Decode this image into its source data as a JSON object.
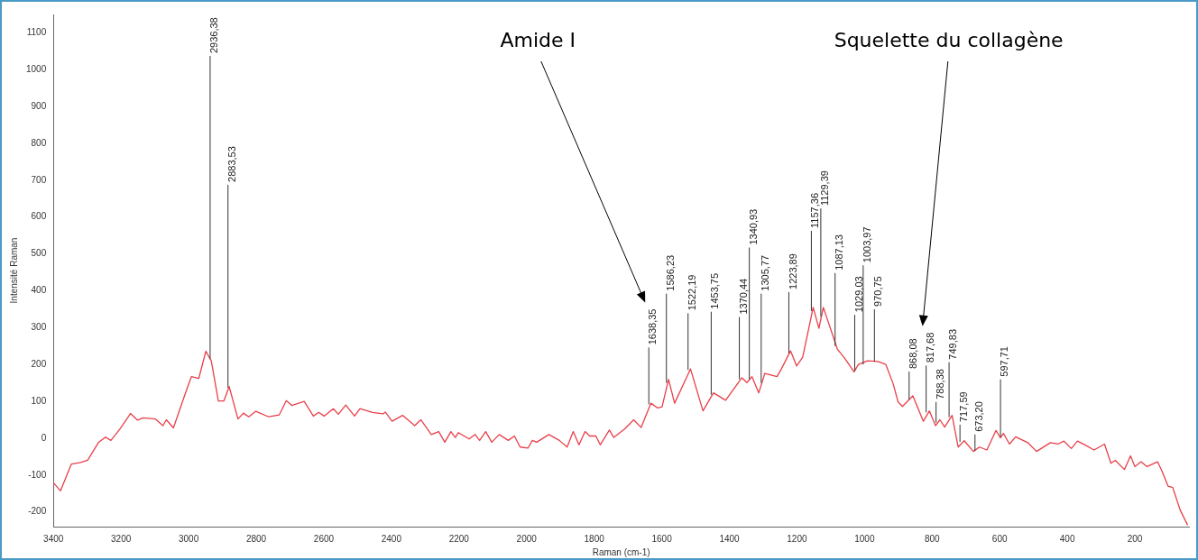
{
  "chart_data": {
    "type": "line",
    "xlabel": "Raman (cm-1)",
    "ylabel": "Intensité Raman",
    "xlim": [
      3400,
      40
    ],
    "ylim": [
      -240,
      1150
    ],
    "xticks": [
      3400,
      3200,
      3000,
      2800,
      2600,
      2400,
      2200,
      2000,
      1800,
      1600,
      1400,
      1200,
      1000,
      800,
      600,
      400,
      200
    ],
    "yticks": [
      -200,
      -100,
      0,
      100,
      200,
      300,
      400,
      500,
      600,
      700,
      800,
      900,
      1000,
      1100
    ],
    "grid": false,
    "legend": false,
    "marker": "none",
    "line_style": "solid",
    "series": [
      {
        "color": "#e8404a",
        "x": [
          3400,
          3379,
          3347,
          3320,
          3299,
          3267,
          3246,
          3230,
          3204,
          3172,
          3151,
          3135,
          3098,
          3076,
          3066,
          3045,
          3013,
          2992,
          2970,
          2949,
          2933,
          2912,
          2896,
          2880,
          2854,
          2838,
          2822,
          2801,
          2763,
          2732,
          2711,
          2695,
          2658,
          2631,
          2615,
          2599,
          2572,
          2557,
          2535,
          2509,
          2493,
          2456,
          2425,
          2418,
          2398,
          2367,
          2331,
          2313,
          2282,
          2260,
          2242,
          2224,
          2211,
          2202,
          2170,
          2152,
          2139,
          2121,
          2103,
          2081,
          2054,
          2036,
          2019,
          1996,
          1983,
          1970,
          1934,
          1903,
          1880,
          1862,
          1845,
          1827,
          1813,
          1795,
          1782,
          1755,
          1742,
          1710,
          1683,
          1661,
          1632,
          1612,
          1599,
          1580,
          1562,
          1515,
          1478,
          1447,
          1411,
          1363,
          1348,
          1333,
          1313,
          1295,
          1259,
          1246,
          1219,
          1201,
          1183,
          1152,
          1135,
          1122,
          1080,
          1058,
          1031,
          1018,
          991,
          960,
          937,
          915,
          901,
          888,
          857,
          826,
          808,
          790,
          777,
          763,
          741,
          723,
          705,
          678,
          660,
          638,
          611,
          598,
          589,
          571,
          553,
          517,
          491,
          450,
          428,
          410,
          388,
          370,
          344,
          321,
          290,
          271,
          258,
          231,
          213,
          200,
          182,
          164,
          133,
          120,
          102,
          88,
          66,
          44
        ],
        "values": [
          -121,
          -143,
          -70,
          -66,
          -60,
          -12,
          3,
          -6,
          24,
          67,
          49,
          55,
          52,
          34,
          50,
          28,
          113,
          167,
          162,
          236,
          210,
          101,
          101,
          140,
          52,
          68,
          58,
          73,
          58,
          63,
          102,
          89,
          100,
          60,
          70,
          60,
          80,
          65,
          90,
          60,
          80,
          70,
          66,
          71,
          46,
          62,
          34,
          50,
          10,
          18,
          -11,
          18,
          2,
          15,
          -2,
          10,
          -6,
          18,
          -11,
          10,
          -6,
          6,
          -24,
          -27,
          -6,
          -11,
          10,
          -6,
          -24,
          18,
          -18,
          18,
          6,
          6,
          -18,
          22,
          2,
          25,
          50,
          29,
          95,
          82,
          85,
          160,
          95,
          188,
          74,
          123,
          103,
          164,
          151,
          167,
          123,
          176,
          167,
          188,
          237,
          196,
          220,
          355,
          298,
          355,
          241,
          216,
          180,
          200,
          210,
          208,
          200,
          147,
          99,
          86,
          115,
          46,
          74,
          34,
          50,
          30,
          62,
          -24,
          -7,
          -36,
          -24,
          -32,
          21,
          1,
          13,
          -16,
          4,
          -12,
          -36,
          -12,
          -16,
          -8,
          -28,
          -8,
          -20,
          -32,
          -16,
          -68,
          -60,
          -85,
          -48,
          -77,
          -64,
          -77,
          -64,
          -89,
          -130,
          -134,
          -195,
          -236
        ]
      }
    ],
    "annotations": [
      "Amide I",
      "Squelette du collagène",
      {
        "text": "2936,38",
        "x": 2936.38,
        "y": 215
      },
      {
        "text": "2883,53",
        "x": 2883.53,
        "y": 137
      },
      {
        "text": "1638,35",
        "x": 1638.35,
        "y": 92
      },
      {
        "text": "1586,23",
        "x": 1586.23,
        "y": 150
      },
      {
        "text": "1522,19",
        "x": 1522.19,
        "y": 185
      },
      {
        "text": "1453,75",
        "x": 1453.75,
        "y": 118
      },
      {
        "text": "1370,44",
        "x": 1370.44,
        "y": 160
      },
      {
        "text": "1340,93",
        "x": 1340.93,
        "y": 160
      },
      {
        "text": "1305,77",
        "x": 1305.77,
        "y": 150
      },
      {
        "text": "1223,89",
        "x": 1223.89,
        "y": 230
      },
      {
        "text": "1157,36",
        "x": 1157.36,
        "y": 345
      },
      {
        "text": "1129,39",
        "x": 1129.39,
        "y": 330
      },
      {
        "text": "1087,13",
        "x": 1087.13,
        "y": 250
      },
      {
        "text": "1029,03",
        "x": 1029.03,
        "y": 183
      },
      {
        "text": "1003,97",
        "x": 1003.97,
        "y": 200
      },
      {
        "text": "970,75",
        "x": 970.75,
        "y": 208
      },
      {
        "text": "868,08",
        "x": 868.08,
        "y": 105
      },
      {
        "text": "817,68",
        "x": 817.68,
        "y": 70
      },
      {
        "text": "788,38",
        "x": 788.38,
        "y": 42
      },
      {
        "text": "749,83",
        "x": 749.83,
        "y": 57
      },
      {
        "text": "717,59",
        "x": 717.59,
        "y": -10
      },
      {
        "text": "673,20",
        "x": 673.2,
        "y": -34
      },
      {
        "text": "597,71",
        "x": 597.71,
        "y": 3
      }
    ]
  }
}
